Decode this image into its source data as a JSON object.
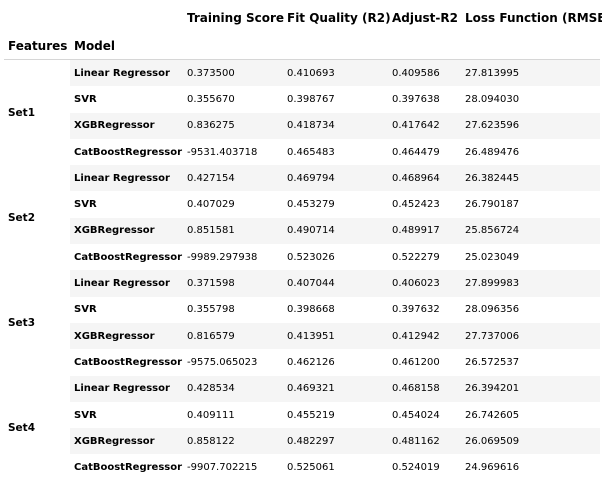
{
  "columns": {
    "features": "Features",
    "model": "Model",
    "training_score": "Training Score",
    "fit_quality": "Fit Quality (R2)",
    "adjust_r2": "Adjust-R2",
    "loss_function": "Loss Function (RMSE)"
  },
  "groups": [
    {
      "feature": "Set1",
      "rows": [
        {
          "model": "Linear Regressor",
          "training": "0.373500",
          "fit": "0.410693",
          "adj": "0.409586",
          "loss": "27.813995"
        },
        {
          "model": "SVR",
          "training": "0.355670",
          "fit": "0.398767",
          "adj": "0.397638",
          "loss": "28.094030"
        },
        {
          "model": "XGBRegressor",
          "training": "0.836275",
          "fit": "0.418734",
          "adj": "0.417642",
          "loss": "27.623596"
        },
        {
          "model": "CatBoostRegressor",
          "training": "-9531.403718",
          "fit": "0.465483",
          "adj": "0.464479",
          "loss": "26.489476"
        }
      ]
    },
    {
      "feature": "Set2",
      "rows": [
        {
          "model": "Linear Regressor",
          "training": "0.427154",
          "fit": "0.469794",
          "adj": "0.468964",
          "loss": "26.382445"
        },
        {
          "model": "SVR",
          "training": "0.407029",
          "fit": "0.453279",
          "adj": "0.452423",
          "loss": "26.790187"
        },
        {
          "model": "XGBRegressor",
          "training": "0.851581",
          "fit": "0.490714",
          "adj": "0.489917",
          "loss": "25.856724"
        },
        {
          "model": "CatBoostRegressor",
          "training": "-9989.297938",
          "fit": "0.523026",
          "adj": "0.522279",
          "loss": "25.023049"
        }
      ]
    },
    {
      "feature": "Set3",
      "rows": [
        {
          "model": "Linear Regressor",
          "training": "0.371598",
          "fit": "0.407044",
          "adj": "0.406023",
          "loss": "27.899983"
        },
        {
          "model": "SVR",
          "training": "0.355798",
          "fit": "0.398668",
          "adj": "0.397632",
          "loss": "28.096356"
        },
        {
          "model": "XGBRegressor",
          "training": "0.816579",
          "fit": "0.413951",
          "adj": "0.412942",
          "loss": "27.737006"
        },
        {
          "model": "CatBoostRegressor",
          "training": "-9575.065023",
          "fit": "0.462126",
          "adj": "0.461200",
          "loss": "26.572537"
        }
      ]
    },
    {
      "feature": "Set4",
      "rows": [
        {
          "model": "Linear Regressor",
          "training": "0.428534",
          "fit": "0.469321",
          "adj": "0.468158",
          "loss": "26.394201"
        },
        {
          "model": "SVR",
          "training": "0.409111",
          "fit": "0.455219",
          "adj": "0.454024",
          "loss": "26.742605"
        },
        {
          "model": "XGBRegressor",
          "training": "0.858122",
          "fit": "0.482297",
          "adj": "0.481162",
          "loss": "26.069509"
        },
        {
          "model": "CatBoostRegressor",
          "training": "-9907.702215",
          "fit": "0.525061",
          "adj": "0.524019",
          "loss": "24.969616"
        }
      ]
    }
  ]
}
